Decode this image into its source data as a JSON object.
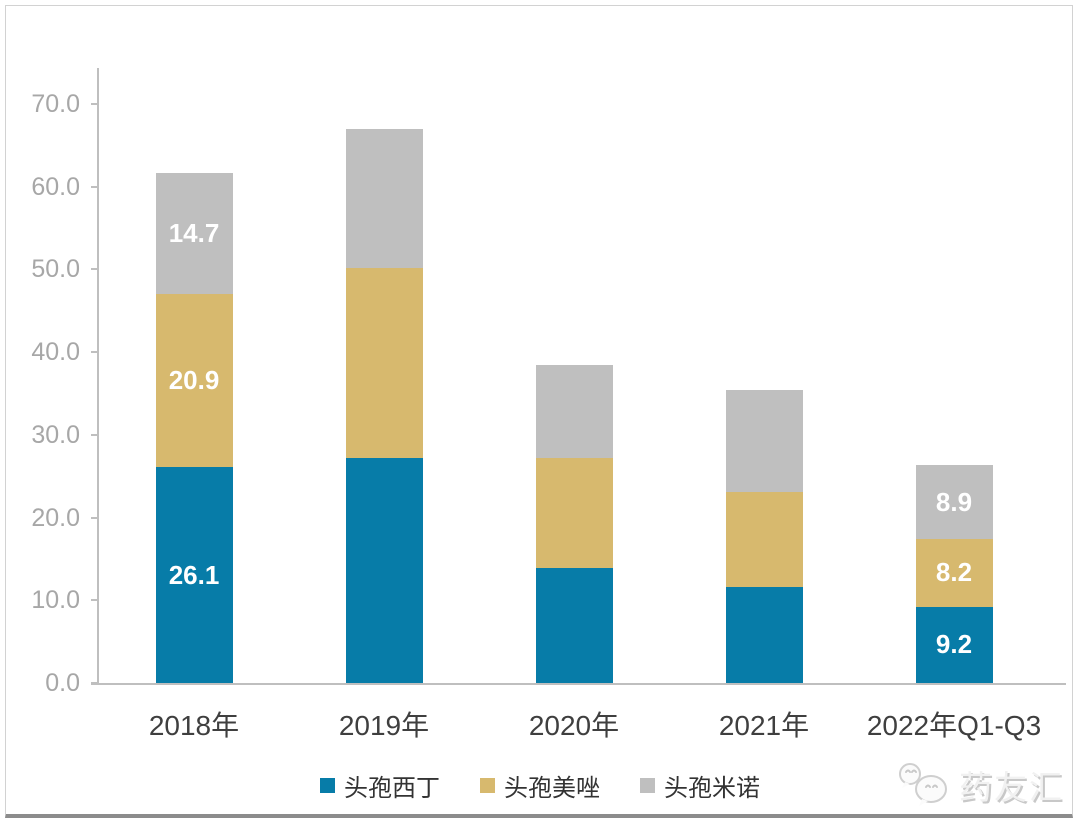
{
  "watermark": {
    "text": "药友汇"
  },
  "chart_data": {
    "type": "bar",
    "stacked": true,
    "title": "",
    "xlabel": "",
    "ylabel": "",
    "categories": [
      "2018年",
      "2019年",
      "2020年",
      "2021年",
      "2022年Q1-Q3"
    ],
    "series": [
      {
        "name": "头孢西丁",
        "color": "#077CA8",
        "values": [
          26.1,
          27.2,
          13.9,
          11.6,
          9.2
        ],
        "labels": [
          "26.1",
          "",
          "",
          "",
          "9.2"
        ]
      },
      {
        "name": "头孢美唑",
        "color": "#D7B96E",
        "values": [
          20.9,
          23.0,
          13.3,
          11.5,
          8.2
        ],
        "labels": [
          "20.9",
          "",
          "",
          "",
          "8.2"
        ]
      },
      {
        "name": "头孢米诺",
        "color": "#BFBFBF",
        "values": [
          14.7,
          16.8,
          11.2,
          12.3,
          8.9
        ],
        "labels": [
          "14.7",
          "",
          "",
          "",
          "8.9"
        ]
      }
    ],
    "y_ticks": [
      "0.0",
      "10.0",
      "20.0",
      "30.0",
      "40.0",
      "50.0",
      "60.0",
      "70.0"
    ],
    "ylim": [
      0,
      70
    ],
    "grid": false,
    "legend_position": "bottom"
  }
}
